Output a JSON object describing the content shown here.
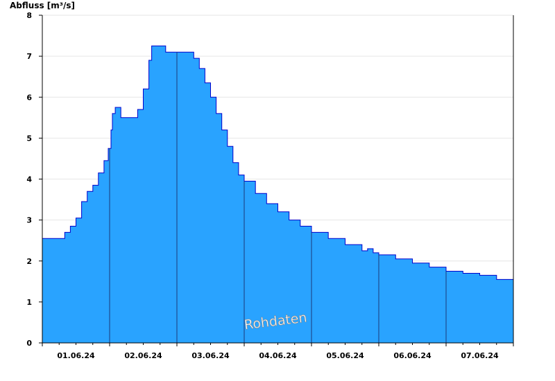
{
  "chart_data": {
    "type": "area",
    "ylabel": "Abfluss [m³/s]",
    "ylim": [
      0,
      8
    ],
    "yticks": [
      0,
      1,
      2,
      3,
      4,
      5,
      6,
      7,
      8
    ],
    "xlim_days": [
      "01.06.24",
      "08.06.24"
    ],
    "day_labels": [
      "01.06.24",
      "02.06.24",
      "03.06.24",
      "04.06.24",
      "05.06.24",
      "06.06.24",
      "07.06.24"
    ],
    "watermark": "Rohdaten",
    "grid": true,
    "colors": {
      "fill": "#29a3ff",
      "line": "#0000cc",
      "day_separator": "#1a3a7a",
      "grid": "#e6e6e6"
    },
    "series": [
      {
        "values": [
          [
            "2024-06-01 00:00",
            2.55
          ],
          [
            "2024-06-01 07:00",
            2.55
          ],
          [
            "2024-06-01 08:00",
            2.7
          ],
          [
            "2024-06-01 10:00",
            2.85
          ],
          [
            "2024-06-01 12:00",
            3.05
          ],
          [
            "2024-06-01 14:00",
            3.45
          ],
          [
            "2024-06-01 16:00",
            3.7
          ],
          [
            "2024-06-01 18:00",
            3.85
          ],
          [
            "2024-06-01 20:00",
            4.15
          ],
          [
            "2024-06-01 22:00",
            4.45
          ],
          [
            "2024-06-01 23:30",
            4.75
          ],
          [
            "2024-06-02 00:30",
            5.2
          ],
          [
            "2024-06-02 01:00",
            5.6
          ],
          [
            "2024-06-02 02:00",
            5.75
          ],
          [
            "2024-06-02 04:00",
            5.5
          ],
          [
            "2024-06-02 08:00",
            5.5
          ],
          [
            "2024-06-02 10:00",
            5.7
          ],
          [
            "2024-06-02 12:00",
            6.2
          ],
          [
            "2024-06-02 14:00",
            6.9
          ],
          [
            "2024-06-02 15:00",
            7.25
          ],
          [
            "2024-06-02 19:00",
            7.25
          ],
          [
            "2024-06-02 20:00",
            7.1
          ],
          [
            "2024-06-03 05:00",
            7.1
          ],
          [
            "2024-06-03 06:00",
            6.95
          ],
          [
            "2024-06-03 08:00",
            6.7
          ],
          [
            "2024-06-03 10:00",
            6.35
          ],
          [
            "2024-06-03 12:00",
            6.0
          ],
          [
            "2024-06-03 14:00",
            5.6
          ],
          [
            "2024-06-03 16:00",
            5.2
          ],
          [
            "2024-06-03 18:00",
            4.8
          ],
          [
            "2024-06-03 20:00",
            4.4
          ],
          [
            "2024-06-03 22:00",
            4.1
          ],
          [
            "2024-06-04 00:00",
            3.95
          ],
          [
            "2024-06-04 04:00",
            3.65
          ],
          [
            "2024-06-04 08:00",
            3.4
          ],
          [
            "2024-06-04 12:00",
            3.2
          ],
          [
            "2024-06-04 16:00",
            3.0
          ],
          [
            "2024-06-04 20:00",
            2.85
          ],
          [
            "2024-06-05 00:00",
            2.7
          ],
          [
            "2024-06-05 06:00",
            2.55
          ],
          [
            "2024-06-05 12:00",
            2.4
          ],
          [
            "2024-06-05 18:00",
            2.25
          ],
          [
            "2024-06-05 20:00",
            2.3
          ],
          [
            "2024-06-05 22:00",
            2.2
          ],
          [
            "2024-06-06 00:00",
            2.15
          ],
          [
            "2024-06-06 06:00",
            2.05
          ],
          [
            "2024-06-06 12:00",
            1.95
          ],
          [
            "2024-06-06 18:00",
            1.85
          ],
          [
            "2024-06-07 00:00",
            1.75
          ],
          [
            "2024-06-07 06:00",
            1.7
          ],
          [
            "2024-06-07 12:00",
            1.65
          ],
          [
            "2024-06-07 18:00",
            1.55
          ],
          [
            "2024-06-08 00:00",
            1.5
          ]
        ]
      }
    ]
  }
}
